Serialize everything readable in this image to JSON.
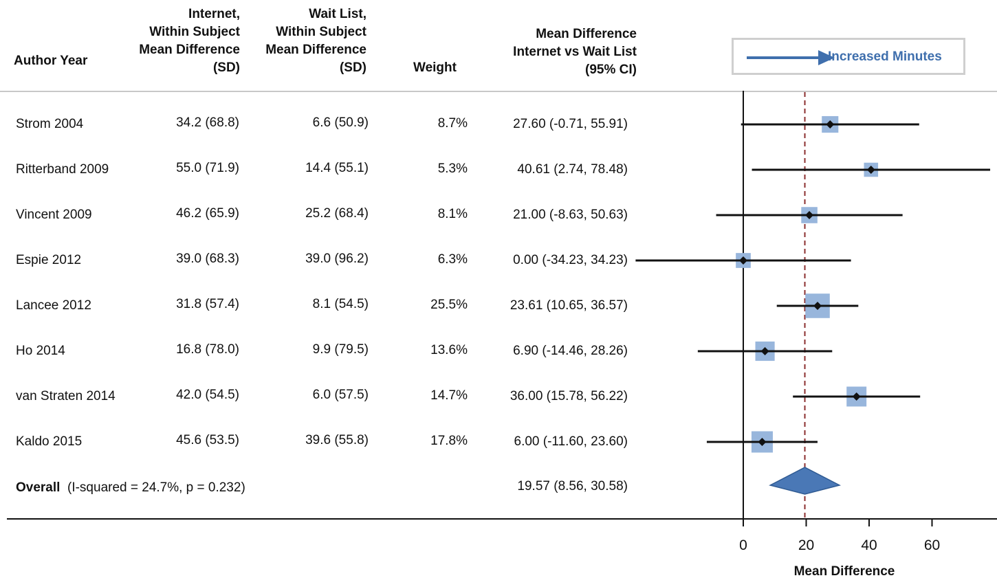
{
  "headers": {
    "author": "Author Year",
    "internet": [
      "Internet,",
      "Within Subject",
      "Mean Difference",
      "(SD)"
    ],
    "waitlist": [
      "Wait List,",
      "Within Subject",
      "Mean Difference",
      "(SD)"
    ],
    "weight": "Weight",
    "md": [
      "Mean Difference",
      "Internet vs Wait List",
      "(95% CI)"
    ]
  },
  "legend": {
    "label": "Increased Minutes",
    "color": "#3f6fad"
  },
  "colors": {
    "marker": "#98b6dc",
    "diamond": "#4a78b6",
    "reference_line": "#8b2e2e"
  },
  "overall": {
    "label": "Overall",
    "stats": "(I-squared = 24.7%, p = 0.232)",
    "ci_text": "19.57 (8.56, 30.58)"
  },
  "chart_data": {
    "type": "forest",
    "xlabel": "Mean Difference",
    "xticks": [
      0,
      20,
      40,
      60
    ],
    "xlim": [
      -34.23,
      78.48
    ],
    "reference_line": 19.57,
    "studies": [
      {
        "name": "Strom 2004",
        "internet": "34.2 (68.8)",
        "waitlist": "6.6 (50.9)",
        "weight": "8.7%",
        "weight_value": 8.7,
        "ci_text": "27.60 (-0.71, 55.91)",
        "md": 27.6,
        "lo": -0.71,
        "hi": 55.91
      },
      {
        "name": "Ritterband 2009",
        "internet": "55.0 (71.9)",
        "waitlist": "14.4 (55.1)",
        "weight": "5.3%",
        "weight_value": 5.3,
        "ci_text": "40.61 (2.74, 78.48)",
        "md": 40.61,
        "lo": 2.74,
        "hi": 78.48
      },
      {
        "name": "Vincent 2009",
        "internet": "46.2 (65.9)",
        "waitlist": "25.2 (68.4)",
        "weight": "8.1%",
        "weight_value": 8.1,
        "ci_text": "21.00 (-8.63, 50.63)",
        "md": 21.0,
        "lo": -8.63,
        "hi": 50.63
      },
      {
        "name": "Espie 2012",
        "internet": "39.0 (68.3)",
        "waitlist": "39.0 (96.2)",
        "weight": "6.3%",
        "weight_value": 6.3,
        "ci_text": "0.00 (-34.23, 34.23)",
        "md": 0.0,
        "lo": -34.23,
        "hi": 34.23
      },
      {
        "name": "Lancee 2012",
        "internet": "31.8 (57.4)",
        "waitlist": "8.1 (54.5)",
        "weight": "25.5%",
        "weight_value": 25.5,
        "ci_text": "23.61 (10.65, 36.57)",
        "md": 23.61,
        "lo": 10.65,
        "hi": 36.57
      },
      {
        "name": "Ho 2014",
        "internet": "16.8 (78.0)",
        "waitlist": "9.9 (79.5)",
        "weight": "13.6%",
        "weight_value": 13.6,
        "ci_text": "6.90 (-14.46, 28.26)",
        "md": 6.9,
        "lo": -14.46,
        "hi": 28.26
      },
      {
        "name": "van Straten 2014",
        "internet": "42.0 (54.5)",
        "waitlist": "6.0 (57.5)",
        "weight": "14.7%",
        "weight_value": 14.7,
        "ci_text": "36.00 (15.78, 56.22)",
        "md": 36.0,
        "lo": 15.78,
        "hi": 56.22
      },
      {
        "name": "Kaldo 2015",
        "internet": "45.6 (53.5)",
        "waitlist": "39.6 (55.8)",
        "weight": "17.8%",
        "weight_value": 17.8,
        "ci_text": "6.00 (-11.60, 23.60)",
        "md": 6.0,
        "lo": -11.6,
        "hi": 23.6
      }
    ],
    "overall": {
      "md": 19.57,
      "lo": 8.56,
      "hi": 30.58
    }
  }
}
